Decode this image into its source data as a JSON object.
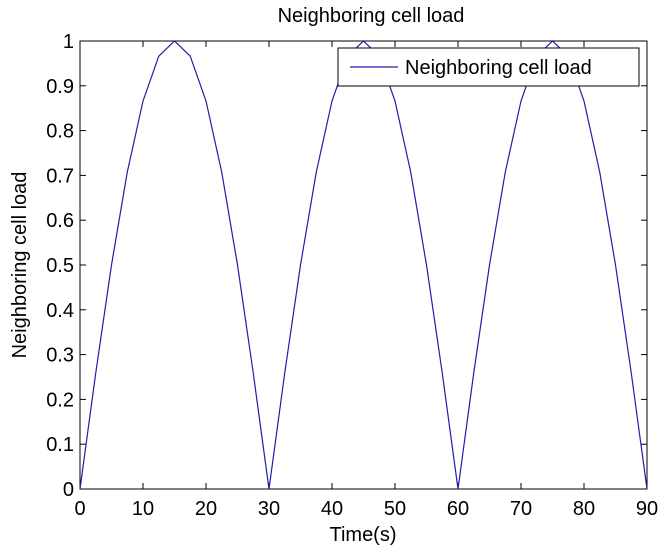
{
  "chart_data": {
    "type": "line",
    "title": "Neighboring cell load",
    "xlabel": "Time(s)",
    "ylabel": "Neighboring cell load",
    "xlim": [
      0,
      90
    ],
    "ylim": [
      0,
      1
    ],
    "xticks": [
      0,
      10,
      20,
      30,
      40,
      50,
      60,
      70,
      80,
      90
    ],
    "yticks": [
      0,
      0.1,
      0.2,
      0.3,
      0.4,
      0.5,
      0.6,
      0.7,
      0.8,
      0.9,
      1
    ],
    "xtick_labels": [
      "0",
      "10",
      "20",
      "30",
      "40",
      "50",
      "60",
      "70",
      "80",
      "90"
    ],
    "ytick_labels": [
      "0",
      "0.1",
      "0.2",
      "0.3",
      "0.4",
      "0.5",
      "0.6",
      "0.7",
      "0.8",
      "0.9",
      "1"
    ],
    "grid": false,
    "legend_position": "top-right",
    "series": [
      {
        "name": "Neighboring cell load",
        "color": "#1f1fa8",
        "x": [
          0,
          2.5,
          5,
          7.5,
          10,
          12.5,
          15,
          17.5,
          20,
          22.5,
          25,
          27.5,
          30,
          32.5,
          35,
          37.5,
          40,
          42.5,
          45,
          47.5,
          50,
          52.5,
          55,
          57.5,
          60,
          62.5,
          65,
          67.5,
          70,
          72.5,
          75,
          77.5,
          80,
          82.5,
          85,
          87.5,
          90
        ],
        "y": [
          0,
          0.259,
          0.5,
          0.707,
          0.866,
          0.966,
          1,
          0.966,
          0.866,
          0.707,
          0.5,
          0.259,
          0,
          0.259,
          0.5,
          0.707,
          0.866,
          0.966,
          1,
          0.966,
          0.866,
          0.707,
          0.5,
          0.259,
          0,
          0.259,
          0.5,
          0.707,
          0.866,
          0.966,
          1,
          0.966,
          0.866,
          0.707,
          0.5,
          0.259,
          0
        ]
      }
    ]
  }
}
